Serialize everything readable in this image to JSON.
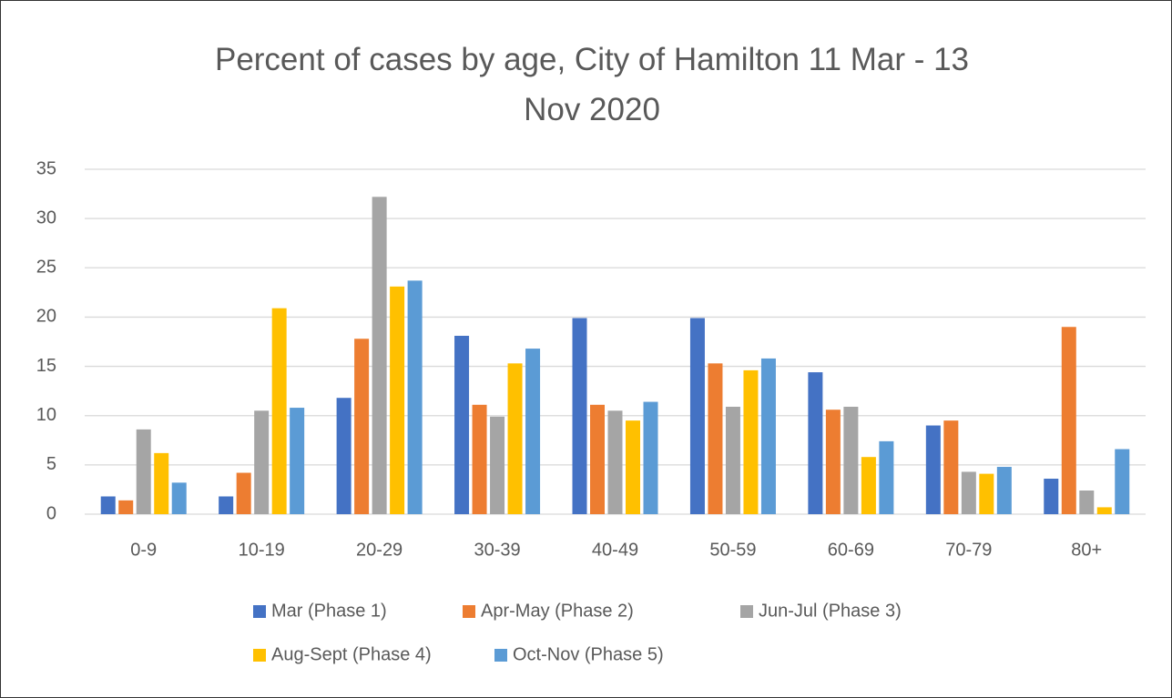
{
  "chart_data": {
    "type": "bar",
    "title": "Percent of cases by age, City of Hamilton 11 Mar - 13 Nov 2020",
    "categories": [
      "0-9",
      "10-19",
      "20-29",
      "30-39",
      "40-49",
      "50-59",
      "60-69",
      "70-79",
      "80+"
    ],
    "series": [
      {
        "name": "Mar (Phase 1)",
        "color": "#4472c4",
        "values": [
          1.8,
          1.8,
          11.8,
          18.1,
          19.9,
          19.9,
          14.4,
          9.0,
          3.6
        ]
      },
      {
        "name": "Apr-May (Phase 2)",
        "color": "#ed7d31",
        "values": [
          1.4,
          4.2,
          17.8,
          11.1,
          11.1,
          15.3,
          10.6,
          9.5,
          19.0
        ]
      },
      {
        "name": "Jun-Jul (Phase 3)",
        "color": "#a5a5a5",
        "values": [
          8.6,
          10.5,
          32.2,
          9.9,
          10.5,
          10.9,
          10.9,
          4.3,
          2.4
        ]
      },
      {
        "name": "Aug-Sept (Phase 4)",
        "color": "#ffc000",
        "values": [
          6.2,
          20.9,
          23.1,
          15.3,
          9.5,
          14.6,
          5.8,
          4.1,
          0.7
        ]
      },
      {
        "name": "Oct-Nov (Phase 5)",
        "color": "#5b9bd5",
        "values": [
          3.2,
          10.8,
          23.7,
          16.8,
          11.4,
          15.8,
          7.4,
          4.8,
          6.6
        ]
      }
    ],
    "ylim": [
      0,
      35
    ],
    "yticks": [
      0,
      5,
      10,
      15,
      20,
      25,
      30,
      35
    ],
    "grid": true,
    "legend": "bottom"
  }
}
